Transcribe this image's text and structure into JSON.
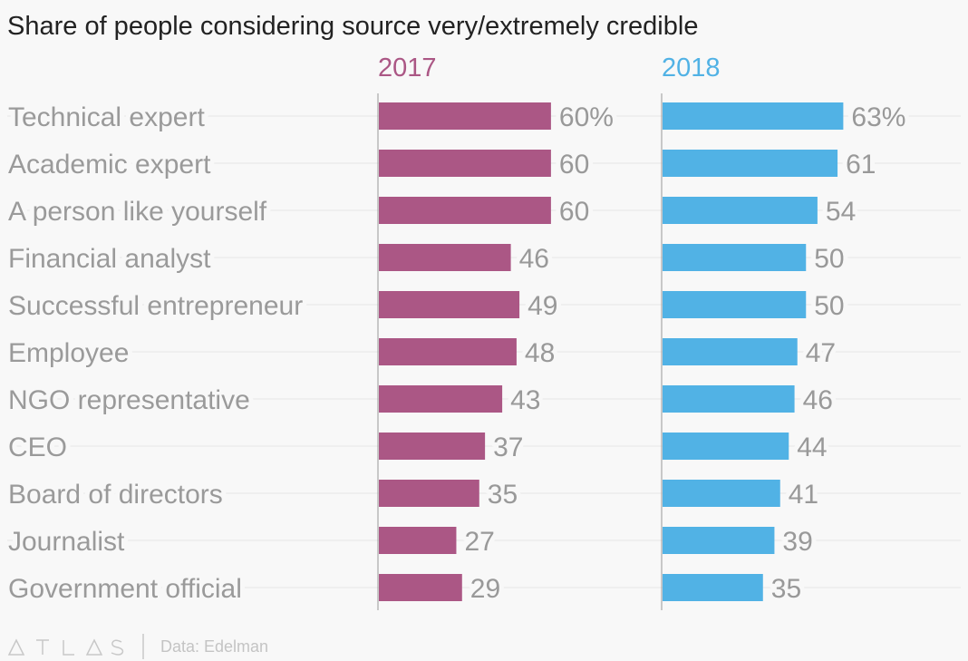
{
  "chart_data": {
    "type": "bar",
    "orientation": "horizontal",
    "title": "Share of people considering source very/extremely credible",
    "categories": [
      "Technical expert",
      "Academic expert",
      "A person like yourself",
      "Financial analyst",
      "Successful entrepreneur",
      "Employee",
      "NGO representative",
      "CEO",
      "Board of directors",
      "Journalist",
      "Government official"
    ],
    "series": [
      {
        "name": "2017",
        "color": "#ab5785",
        "values": [
          60,
          60,
          60,
          46,
          49,
          48,
          43,
          37,
          35,
          27,
          29
        ]
      },
      {
        "name": "2018",
        "color": "#51b2e5",
        "values": [
          63,
          61,
          54,
          50,
          50,
          47,
          46,
          44,
          41,
          39,
          35
        ]
      }
    ],
    "value_suffix_first_row": "%",
    "grid": true
  },
  "footer": {
    "logo": "ATLAS",
    "source": "Data: Edelman"
  }
}
